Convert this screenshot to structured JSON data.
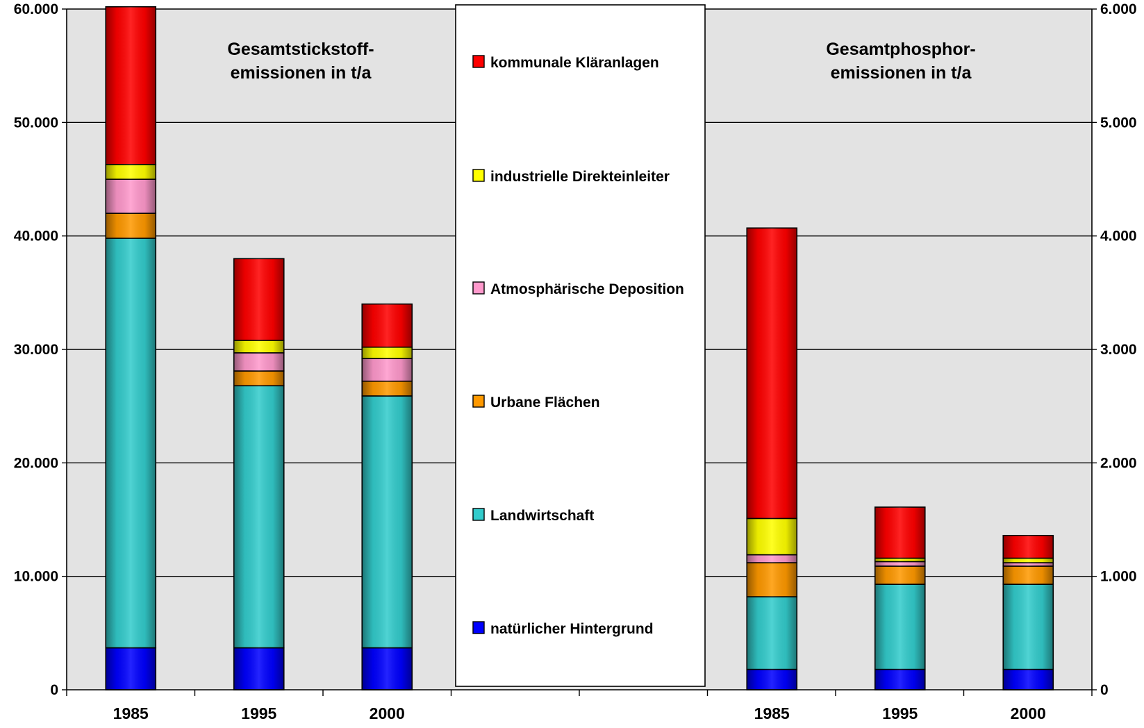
{
  "chart_data": {
    "type": "bar",
    "stacked": true,
    "grid": true,
    "legend_position": "center",
    "legend_order": [
      "kommunale Kläranlagen",
      "industrielle Direkteinleiter",
      "Atmosphärische Deposition",
      "Urbane Flächen",
      "Landwirtschaft",
      "natürlicher Hintergrund"
    ],
    "colors": {
      "natürlicher Hintergrund": "#0000ff",
      "Landwirtschaft": "#33cccc",
      "Urbane Flächen": "#ff9900",
      "Atmosphärische Deposition": "#ff99cc",
      "industrielle Direkteinleiter": "#ffff00",
      "kommunale Kläranlagen": "#ff0000",
      "plot_background": "#e3e3e3"
    },
    "left_axis": {
      "ylim": [
        0,
        60000
      ],
      "ticks": [
        "0",
        "10.000",
        "20.000",
        "30.000",
        "40.000",
        "50.000",
        "60.000"
      ]
    },
    "right_axis": {
      "ylim": [
        0,
        6000
      ],
      "ticks": [
        "0",
        "1.000",
        "2.000",
        "3.000",
        "4.000",
        "5.000",
        "6.000"
      ]
    },
    "panels": [
      {
        "title_line1": "Gesamtstickstoff-",
        "title_line2": "emissionen in t/a",
        "axis": "left",
        "categories": [
          "1985",
          "1995",
          "2000"
        ],
        "series": [
          {
            "name": "natürlicher Hintergrund",
            "values": [
              3700,
              3700,
              3700
            ]
          },
          {
            "name": "Landwirtschaft",
            "values": [
              36100,
              23100,
              22200
            ]
          },
          {
            "name": "Urbane Flächen",
            "values": [
              2200,
              1300,
              1300
            ]
          },
          {
            "name": "Atmosphärische Deposition",
            "values": [
              3000,
              1600,
              2000
            ]
          },
          {
            "name": "industrielle Direkteinleiter",
            "values": [
              1300,
              1100,
              1000
            ]
          },
          {
            "name": "kommunale Kläranlagen",
            "values": [
              13900,
              7200,
              3800
            ]
          }
        ]
      },
      {
        "title_line1": "Gesamtphosphor-",
        "title_line2": "emissionen in t/a",
        "axis": "right",
        "categories": [
          "1985",
          "1995",
          "2000"
        ],
        "series": [
          {
            "name": "natürlicher Hintergrund",
            "values": [
              180,
              180,
              180
            ]
          },
          {
            "name": "Landwirtschaft",
            "values": [
              640,
              750,
              750
            ]
          },
          {
            "name": "Urbane Flächen",
            "values": [
              300,
              160,
              160
            ]
          },
          {
            "name": "Atmosphärische Deposition",
            "values": [
              70,
              40,
              30
            ]
          },
          {
            "name": "industrielle Direkteinleiter",
            "values": [
              320,
              30,
              40
            ]
          },
          {
            "name": "kommunale Kläranlagen",
            "values": [
              2560,
              450,
              200
            ]
          }
        ]
      }
    ]
  }
}
